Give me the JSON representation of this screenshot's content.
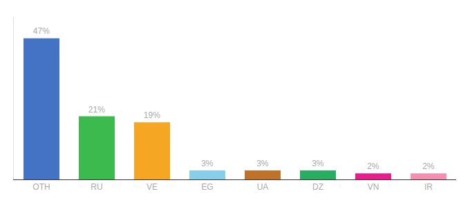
{
  "chart_data": {
    "type": "bar",
    "categories": [
      "OTH",
      "RU",
      "VE",
      "EG",
      "UA",
      "DZ",
      "VN",
      "IR"
    ],
    "values": [
      47,
      21,
      19,
      3,
      3,
      3,
      2,
      2
    ],
    "value_labels": [
      "47%",
      "21%",
      "19%",
      "3%",
      "3%",
      "3%",
      "2%",
      "2%"
    ],
    "colors": [
      "#4472c4",
      "#3dba4e",
      "#f5a623",
      "#87ceeb",
      "#c0722a",
      "#27ae60",
      "#e91e8c",
      "#f48fb1"
    ],
    "ylim": [
      0,
      54
    ],
    "data_labels": true,
    "tick_labels": "x",
    "grid": false
  }
}
